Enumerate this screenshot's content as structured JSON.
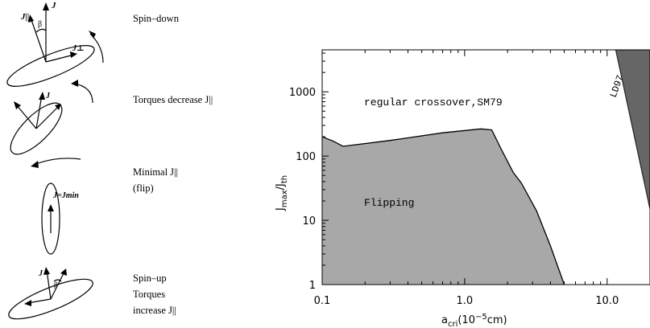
{
  "left_panel": {
    "stages": [
      {
        "caption_lines": [
          "Spin–down"
        ]
      },
      {
        "caption_lines": [
          "Torques decrease J||"
        ]
      },
      {
        "caption_lines": [
          "Minimal J||",
          "(flip)"
        ]
      },
      {
        "caption_lines": [
          "Spin–up",
          "Torques",
          "increase J||"
        ]
      }
    ],
    "labels": {
      "j": "J",
      "j_par": "J||",
      "j_perp": "J⊥",
      "beta": "β",
      "j_min": "J=Jmin"
    }
  },
  "chart_data": {
    "type": "area",
    "x_scale": "log",
    "y_scale": "log",
    "xlabel": "acri(10−5cm)",
    "ylabel": "Jmax/Jth",
    "xlim": [
      0.1,
      20
    ],
    "ylim": [
      1,
      4500
    ],
    "x_ticks": [
      0.1,
      1.0,
      10.0
    ],
    "x_tick_labels": [
      "0.1",
      "1.0",
      "10.0"
    ],
    "y_ticks": [
      1,
      10,
      100,
      1000
    ],
    "y_tick_labels": [
      "1",
      "10",
      "100",
      "1000"
    ],
    "regions": [
      {
        "label": "Flipping",
        "color": "#a8a8a8",
        "boundary": [
          {
            "x": 0.1,
            "y": 200
          },
          {
            "x": 0.12,
            "y": 170
          },
          {
            "x": 0.14,
            "y": 142
          },
          {
            "x": 0.3,
            "y": 175
          },
          {
            "x": 0.7,
            "y": 230
          },
          {
            "x": 1.3,
            "y": 265
          },
          {
            "x": 1.55,
            "y": 255
          },
          {
            "x": 1.8,
            "y": 130
          },
          {
            "x": 2.2,
            "y": 55
          },
          {
            "x": 2.5,
            "y": 38
          },
          {
            "x": 3.2,
            "y": 14
          },
          {
            "x": 4.0,
            "y": 4
          },
          {
            "x": 5.0,
            "y": 1
          }
        ]
      },
      {
        "label": "LD97",
        "color": "#666666",
        "boundary": [
          {
            "x": 11.5,
            "y": 4500
          },
          {
            "x": 20,
            "y": 15
          }
        ]
      }
    ],
    "annotations": [
      {
        "text": "regular crossover,SM79",
        "x": 0.17,
        "y": 1000
      }
    ]
  }
}
